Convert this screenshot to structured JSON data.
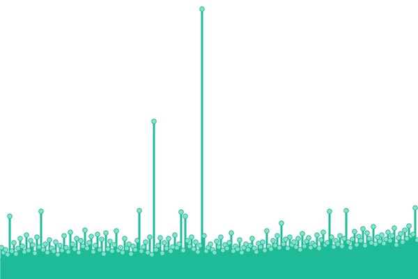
{
  "chart_data": {
    "type": "lollipop",
    "color": "#1fbb98",
    "area_color": "#88e1cc",
    "ylim": [
      0,
      400
    ],
    "values": [
      45,
      38,
      42,
      35,
      90,
      40,
      52,
      36,
      44,
      58,
      47,
      39,
      63,
      41,
      55,
      49,
      37,
      60,
      46,
      97,
      42,
      50,
      38,
      56,
      44,
      40,
      53,
      35,
      48,
      41,
      62,
      45,
      39,
      67,
      50,
      43,
      58,
      38,
      55,
      47,
      70,
      44,
      52,
      61,
      39,
      48,
      64,
      42,
      57,
      36,
      66,
      43,
      54,
      40,
      49,
      69,
      41,
      45,
      38,
      58,
      44,
      50,
      36,
      47,
      42,
      55,
      98,
      40,
      46,
      53,
      38,
      60,
      35,
      226,
      42,
      48,
      59,
      37,
      52,
      44,
      58,
      40,
      46,
      63,
      45,
      50,
      96,
      41,
      90,
      55,
      47,
      60,
      43,
      53,
      39,
      48,
      387,
      62,
      40,
      45,
      50,
      42,
      38,
      54,
      46,
      60,
      41,
      49,
      44,
      52,
      66,
      40,
      47,
      43,
      56,
      38,
      45,
      50,
      42,
      48,
      58,
      44,
      39,
      51,
      46,
      53,
      41,
      69,
      47,
      43,
      55,
      48,
      62,
      45,
      80,
      50,
      57,
      44,
      60,
      49,
      53,
      46,
      58,
      42,
      65,
      47,
      54,
      59,
      45,
      51,
      48,
      63,
      44,
      56,
      67,
      49,
      52,
      97,
      60,
      46,
      55,
      50,
      62,
      47,
      58,
      98,
      53,
      45,
      57,
      68,
      49,
      61,
      55,
      72,
      48,
      66,
      58,
      52,
      75,
      50,
      60,
      54,
      63,
      51,
      57,
      67,
      55,
      62,
      73,
      49,
      59,
      65,
      53,
      70,
      58,
      76,
      62,
      64,
      102,
      56
    ],
    "area_values": [
      30,
      32,
      33,
      35,
      34,
      32,
      31,
      33,
      36,
      38,
      40,
      42,
      45
    ]
  }
}
